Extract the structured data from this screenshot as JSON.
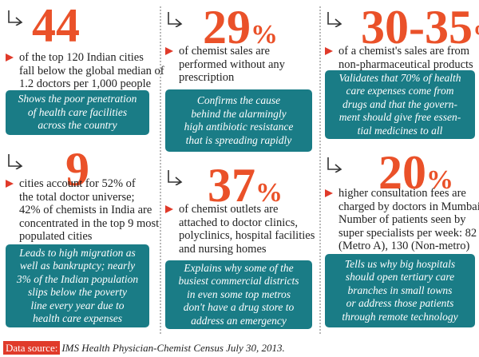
{
  "blocks": [
    {
      "value": "44",
      "description": [
        "of the top 120 Indian cities",
        "fall below the global median of",
        "1.2 doctors per 1,000 people"
      ],
      "note": [
        "Shows the poor penetration",
        "of health care facilities",
        "across the country"
      ]
    },
    {
      "value": "9",
      "description": [
        "cities account for 52% of",
        "the total doctor universe;",
        "42% of chemists in India are",
        "concentrated in the top 9 most",
        "populated cities"
      ],
      "note": [
        "Leads to high migration as",
        "well as bankruptcy; nearly",
        "3% of the Indian population",
        "slips below the poverty",
        "line every year due to",
        "health care expenses"
      ]
    },
    {
      "value": "29",
      "unit": "%",
      "description": [
        "of chemist sales are",
        "performed without any",
        "prescription"
      ],
      "note": [
        "Confirms the cause",
        "behind the alarmingly",
        "high antibiotic resistance",
        "that is spreading rapidly"
      ]
    },
    {
      "value": "37",
      "unit": "%",
      "description": [
        "of chemist outlets are",
        "attached to doctor clinics,",
        "polyclinics, hospital facilities",
        "and nursing homes"
      ],
      "note": [
        "Explains why some of the",
        "busiest commercial districts",
        "in even some top metros",
        "don't have a drug store to",
        "address an emergency"
      ]
    },
    {
      "value": "30-35",
      "unit": "%",
      "description": [
        "of a chemist's sales are from",
        "non-pharmaceutical products"
      ],
      "note": [
        "Validates that 70% of health",
        "care expenses come from",
        "drugs and that the govern-",
        "ment should give free essen-",
        "tial medicines to all"
      ]
    },
    {
      "value": "20",
      "unit": "%",
      "description": [
        "higher consultation fees are",
        "charged by doctors in Mumbai.",
        "Number of patients seen by",
        "super specialists per week: 82",
        "(Metro A), 130 (Non-metro)"
      ],
      "note": [
        "Tells us why big hospitals",
        "should open tertiary care",
        "branches in small towns",
        "or address those patients",
        "through remote technology"
      ]
    }
  ],
  "footer": {
    "label": "Data source:",
    "text": "IMS Health Physician-Chemist Census July 30, 2013."
  }
}
